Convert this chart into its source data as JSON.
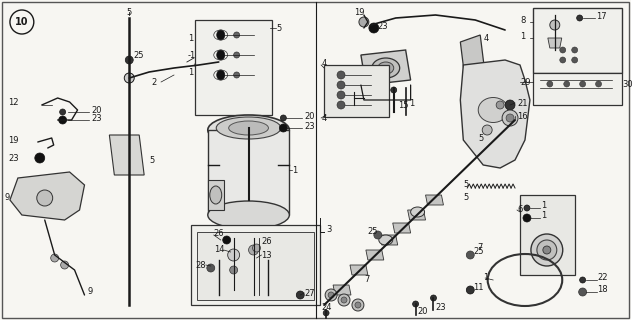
{
  "fig_width": 6.35,
  "fig_height": 3.2,
  "dpi": 100,
  "bg_color": "#ffffff",
  "image_b64": ""
}
